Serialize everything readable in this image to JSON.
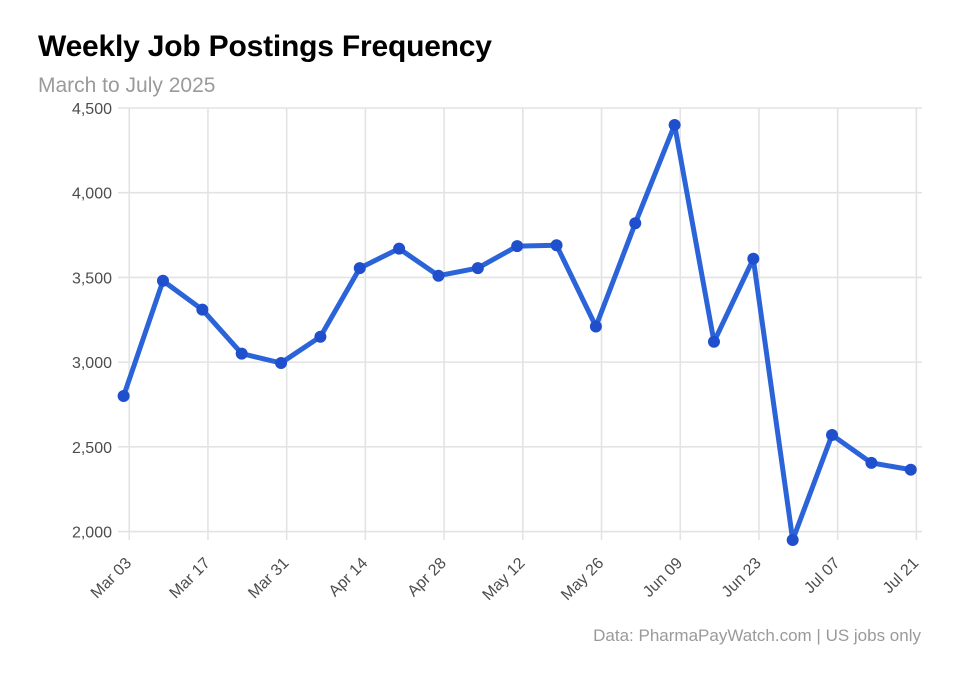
{
  "chart_data": {
    "type": "line",
    "title": "Weekly Job Postings Frequency",
    "subtitle": "March to July 2025",
    "caption": "Data: PharmaPayWatch.com | US jobs only",
    "xlabel": "",
    "ylabel": "",
    "x_tick_labels": [
      "Mar 03",
      "Mar 17",
      "Mar 31",
      "Apr 14",
      "Apr 28",
      "May 12",
      "May 26",
      "Jun 09",
      "Jun 23",
      "Jul 07",
      "Jul 21"
    ],
    "y_tick_labels": [
      "2,000",
      "2,500",
      "3,000",
      "3,500",
      "4,000",
      "4,500"
    ],
    "y_ticks": [
      2000,
      2500,
      3000,
      3500,
      4000,
      4500
    ],
    "ylim": [
      1950,
      4500
    ],
    "xlim": [
      "2025-03-01",
      "2025-07-22"
    ],
    "grid": true,
    "series": [
      {
        "color": "#2b63d9",
        "x": [
          "2025-03-02",
          "2025-03-09",
          "2025-03-16",
          "2025-03-23",
          "2025-03-30",
          "2025-04-06",
          "2025-04-13",
          "2025-04-20",
          "2025-04-27",
          "2025-05-04",
          "2025-05-11",
          "2025-05-18",
          "2025-05-25",
          "2025-06-01",
          "2025-06-08",
          "2025-06-15",
          "2025-06-22",
          "2025-06-29",
          "2025-07-06",
          "2025-07-13",
          "2025-07-20"
        ],
        "values": [
          2800,
          3480,
          3310,
          3050,
          2995,
          3150,
          3555,
          3670,
          3510,
          3555,
          3685,
          3690,
          3210,
          3820,
          4400,
          3120,
          3610,
          1950,
          2570,
          2405,
          2365
        ]
      }
    ]
  }
}
